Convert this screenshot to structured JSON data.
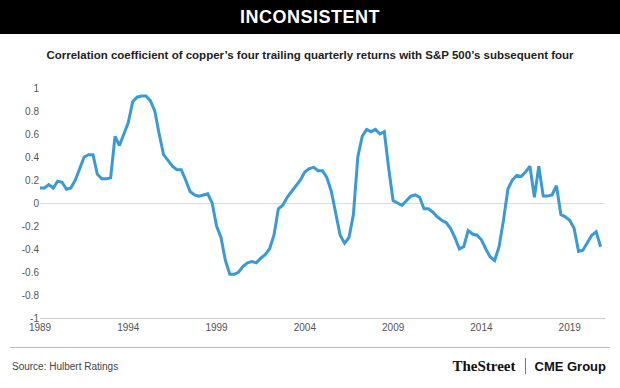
{
  "chart_data": {
    "type": "line",
    "title": "INCONSISTENT",
    "subtitle": "Correlation coefficient of copper’s four trailing quarterly returns with S&P 500’s subsequent four",
    "annotations": [
      "Source: Hulbert Ratings",
      "TheStreet",
      "CME Group"
    ],
    "color": "#3a9ad6",
    "x": [
      1989,
      1989.25,
      1989.5,
      1989.75,
      1990,
      1990.25,
      1990.5,
      1990.75,
      1991,
      1991.25,
      1991.5,
      1991.75,
      1992,
      1992.25,
      1992.5,
      1992.75,
      1993,
      1993.25,
      1993.5,
      1993.75,
      1994,
      1994.25,
      1994.5,
      1994.75,
      1995,
      1995.25,
      1995.5,
      1995.75,
      1996,
      1996.25,
      1996.5,
      1996.75,
      1997,
      1997.25,
      1997.5,
      1997.75,
      1998,
      1998.25,
      1998.5,
      1998.75,
      1999,
      1999.25,
      1999.5,
      1999.75,
      2000,
      2000.25,
      2000.5,
      2000.75,
      2001,
      2001.25,
      2001.5,
      2001.75,
      2002,
      2002.25,
      2002.5,
      2002.75,
      2003,
      2003.25,
      2003.5,
      2003.75,
      2004,
      2004.25,
      2004.5,
      2004.75,
      2005,
      2005.25,
      2005.5,
      2005.75,
      2006,
      2006.25,
      2006.5,
      2006.75,
      2007,
      2007.25,
      2007.5,
      2007.75,
      2008,
      2008.25,
      2008.5,
      2008.75,
      2009,
      2009.25,
      2009.5,
      2009.75,
      2010,
      2010.25,
      2010.5,
      2010.75,
      2011,
      2011.25,
      2011.5,
      2011.75,
      2012,
      2012.25,
      2012.5,
      2012.75,
      2013,
      2013.25,
      2013.5,
      2013.75,
      2014,
      2014.25,
      2014.5,
      2014.75,
      2015,
      2015.25,
      2015.5,
      2015.75,
      2016,
      2016.25,
      2016.5,
      2016.75,
      2017,
      2017.25,
      2017.5,
      2017.75,
      2018,
      2018.25,
      2018.5,
      2018.75,
      2019,
      2019.25,
      2019.5,
      2019.75,
      2020,
      2020.25,
      2020.5,
      2020.75
    ],
    "values": [
      0.13,
      0.13,
      0.16,
      0.13,
      0.19,
      0.18,
      0.12,
      0.13,
      0.2,
      0.3,
      0.4,
      0.42,
      0.42,
      0.25,
      0.21,
      0.21,
      0.22,
      0.58,
      0.5,
      0.6,
      0.7,
      0.88,
      0.92,
      0.93,
      0.93,
      0.89,
      0.8,
      0.6,
      0.42,
      0.37,
      0.32,
      0.29,
      0.29,
      0.2,
      0.1,
      0.07,
      0.06,
      0.07,
      0.08,
      0.0,
      -0.2,
      -0.3,
      -0.5,
      -0.62,
      -0.62,
      -0.6,
      -0.55,
      -0.52,
      -0.51,
      -0.52,
      -0.48,
      -0.45,
      -0.4,
      -0.28,
      -0.05,
      -0.02,
      0.05,
      0.1,
      0.15,
      0.2,
      0.27,
      0.3,
      0.31,
      0.28,
      0.28,
      0.22,
      0.1,
      -0.1,
      -0.28,
      -0.35,
      -0.3,
      -0.1,
      0.4,
      0.58,
      0.64,
      0.62,
      0.64,
      0.6,
      0.62,
      0.3,
      0.02,
      0.0,
      -0.02,
      0.02,
      0.06,
      0.07,
      0.05,
      -0.05,
      -0.05,
      -0.08,
      -0.12,
      -0.15,
      -0.17,
      -0.22,
      -0.3,
      -0.4,
      -0.38,
      -0.24,
      -0.27,
      -0.28,
      -0.32,
      -0.4,
      -0.47,
      -0.5,
      -0.38,
      -0.15,
      0.12,
      0.2,
      0.24,
      0.23,
      0.27,
      0.32,
      0.05,
      0.32,
      0.06,
      0.06,
      0.07,
      0.15,
      -0.1,
      -0.12,
      -0.15,
      -0.22,
      -0.42,
      -0.41,
      -0.35,
      -0.28,
      -0.25,
      -0.38
    ],
    "xlim": [
      1989,
      2021
    ],
    "xticks": [
      1989,
      1994,
      1999,
      2004,
      2009,
      2014,
      2019
    ],
    "ylim": [
      -1,
      1
    ],
    "yticks": [
      -1,
      -0.8,
      -0.6,
      -0.4,
      -0.2,
      0,
      0.2,
      0.4,
      0.6,
      0.8,
      1
    ],
    "grid": false
  }
}
